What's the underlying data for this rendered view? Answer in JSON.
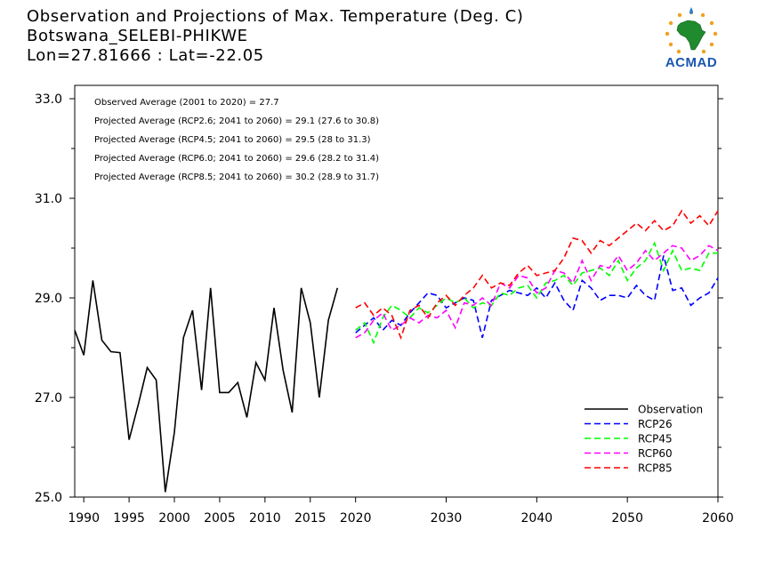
{
  "header": {
    "title_line1": "Observation and Projections of Max. Temperature (Deg. C)",
    "title_line2": "Botswana_SELEBI-PHIKWE",
    "title_line3": "Lon=27.81666 : Lat=-22.05"
  },
  "logo": {
    "text": "ACMAD"
  },
  "stats": [
    "Observed Average (2001 to 2020) = 27.7",
    "Projected Average (RCP2.6; 2041 to 2060) = 29.1 (27.6 to 30.8)",
    "Projected Average (RCP4.5; 2041 to 2060) = 29.5 (28 to 31.3)",
    "Projected Average (RCP6.0; 2041 to 2060) = 29.6 (28.2 to 31.4)",
    "Projected Average (RCP8.5; 2041 to 2060) = 30.2 (28.9 to 31.7)"
  ],
  "colors": {
    "observation": "#000000",
    "rcp26": "#0000ff",
    "rcp45": "#00ff00",
    "rcp60": "#ff00ff",
    "rcp85": "#ff0000"
  },
  "chart_data": {
    "type": "line",
    "title": "Observation and Projections of Max. Temperature (Deg. C)",
    "xlim": [
      1989,
      2060
    ],
    "ylim": [
      25,
      33
    ],
    "x_ticks": [
      1990,
      1995,
      2000,
      2005,
      2010,
      2015,
      2020,
      2030,
      2040,
      2050,
      2060
    ],
    "y_ticks": [
      "25.0",
      "27.0",
      "29.0",
      "31.0",
      "33.0"
    ],
    "y_tick_values": [
      25,
      27,
      29,
      31,
      33
    ],
    "legend_position": "bottom-right",
    "series": [
      {
        "name": "Observation",
        "key": "obs",
        "style": "solid",
        "x": [
          1989,
          1990,
          1991,
          1992,
          1993,
          1994,
          1995,
          1996,
          1997,
          1998,
          1999,
          2000,
          2001,
          2002,
          2003,
          2004,
          2005,
          2006,
          2007,
          2008,
          2009,
          2010,
          2011,
          2012,
          2013,
          2014,
          2015,
          2016,
          2017,
          2018,
          2019,
          2020
        ],
        "values": [
          28.35,
          27.85,
          29.35,
          28.15,
          27.92,
          27.9,
          26.15,
          26.85,
          27.6,
          27.35,
          25.1,
          26.3,
          28.2,
          28.75,
          27.15,
          29.2,
          27.1,
          27.1,
          27.3,
          26.6,
          27.7,
          27.35,
          28.8,
          27.55,
          26.7,
          29.2,
          28.5,
          27.0,
          28.55,
          29.2,
          null,
          null
        ]
      },
      {
        "name": "RCP26",
        "key": "rcp26",
        "style": "dashed",
        "x": [
          2020,
          2021,
          2022,
          2023,
          2024,
          2025,
          2026,
          2027,
          2028,
          2029,
          2030,
          2031,
          2032,
          2033,
          2034,
          2035,
          2036,
          2037,
          2038,
          2039,
          2040,
          2041,
          2042,
          2043,
          2044,
          2045,
          2046,
          2047,
          2048,
          2049,
          2050,
          2051,
          2052,
          2053,
          2054,
          2055,
          2056,
          2057,
          2058,
          2059,
          2060
        ],
        "values": [
          28.3,
          28.45,
          28.6,
          28.35,
          28.55,
          28.45,
          28.7,
          28.9,
          29.1,
          29.05,
          28.8,
          28.9,
          29.0,
          28.95,
          28.2,
          28.95,
          29.05,
          29.15,
          29.1,
          29.05,
          29.2,
          29.0,
          29.3,
          28.95,
          28.75,
          29.35,
          29.2,
          28.95,
          29.05,
          29.05,
          29.0,
          29.25,
          29.05,
          28.95,
          29.85,
          29.15,
          29.2,
          28.85,
          29.0,
          29.1,
          29.4
        ]
      },
      {
        "name": "RCP45",
        "key": "rcp45",
        "style": "dashed",
        "x": [
          2020,
          2021,
          2022,
          2023,
          2024,
          2025,
          2026,
          2027,
          2028,
          2029,
          2030,
          2031,
          2032,
          2033,
          2034,
          2035,
          2036,
          2037,
          2038,
          2039,
          2040,
          2041,
          2042,
          2043,
          2044,
          2045,
          2046,
          2047,
          2048,
          2049,
          2050,
          2051,
          2052,
          2053,
          2054,
          2055,
          2056,
          2057,
          2058,
          2059,
          2060
        ],
        "values": [
          28.35,
          28.5,
          28.1,
          28.6,
          28.85,
          28.75,
          28.6,
          28.8,
          28.7,
          28.85,
          29.0,
          28.9,
          29.0,
          28.8,
          28.9,
          28.85,
          29.1,
          29.05,
          29.2,
          29.25,
          29.0,
          29.3,
          29.35,
          29.45,
          29.25,
          29.5,
          29.55,
          29.6,
          29.45,
          29.75,
          29.35,
          29.6,
          29.75,
          30.1,
          29.55,
          29.95,
          29.55,
          29.6,
          29.55,
          29.9,
          29.9
        ]
      },
      {
        "name": "RCP60",
        "key": "rcp60",
        "style": "dashed",
        "x": [
          2020,
          2021,
          2022,
          2023,
          2024,
          2025,
          2026,
          2027,
          2028,
          2029,
          2030,
          2031,
          2032,
          2033,
          2034,
          2035,
          2036,
          2037,
          2038,
          2039,
          2040,
          2041,
          2042,
          2043,
          2044,
          2045,
          2046,
          2047,
          2048,
          2049,
          2050,
          2051,
          2052,
          2053,
          2054,
          2055,
          2056,
          2057,
          2058,
          2059,
          2060
        ],
        "values": [
          28.2,
          28.3,
          28.55,
          28.7,
          28.35,
          28.45,
          28.6,
          28.5,
          28.65,
          28.6,
          28.75,
          28.4,
          28.9,
          28.85,
          29.0,
          28.85,
          29.3,
          29.2,
          29.45,
          29.4,
          29.1,
          29.2,
          29.55,
          29.5,
          29.3,
          29.75,
          29.35,
          29.65,
          29.6,
          29.85,
          29.55,
          29.7,
          29.95,
          29.75,
          29.9,
          30.05,
          30.0,
          29.75,
          29.85,
          30.05,
          29.95
        ]
      },
      {
        "name": "RCP85",
        "key": "rcp85",
        "style": "dashed",
        "x": [
          2020,
          2021,
          2022,
          2023,
          2024,
          2025,
          2026,
          2027,
          2028,
          2029,
          2030,
          2031,
          2032,
          2033,
          2034,
          2035,
          2036,
          2037,
          2038,
          2039,
          2040,
          2041,
          2042,
          2043,
          2044,
          2045,
          2046,
          2047,
          2048,
          2049,
          2050,
          2051,
          2052,
          2053,
          2054,
          2055,
          2056,
          2057,
          2058,
          2059,
          2060
        ],
        "values": [
          28.8,
          28.9,
          28.65,
          28.8,
          28.65,
          28.2,
          28.75,
          28.85,
          28.6,
          28.9,
          29.05,
          28.85,
          29.05,
          29.2,
          29.45,
          29.2,
          29.3,
          29.25,
          29.5,
          29.65,
          29.45,
          29.5,
          29.55,
          29.8,
          30.2,
          30.15,
          29.9,
          30.15,
          30.05,
          30.2,
          30.35,
          30.5,
          30.35,
          30.55,
          30.35,
          30.45,
          30.75,
          30.5,
          30.65,
          30.45,
          30.75
        ]
      }
    ]
  }
}
